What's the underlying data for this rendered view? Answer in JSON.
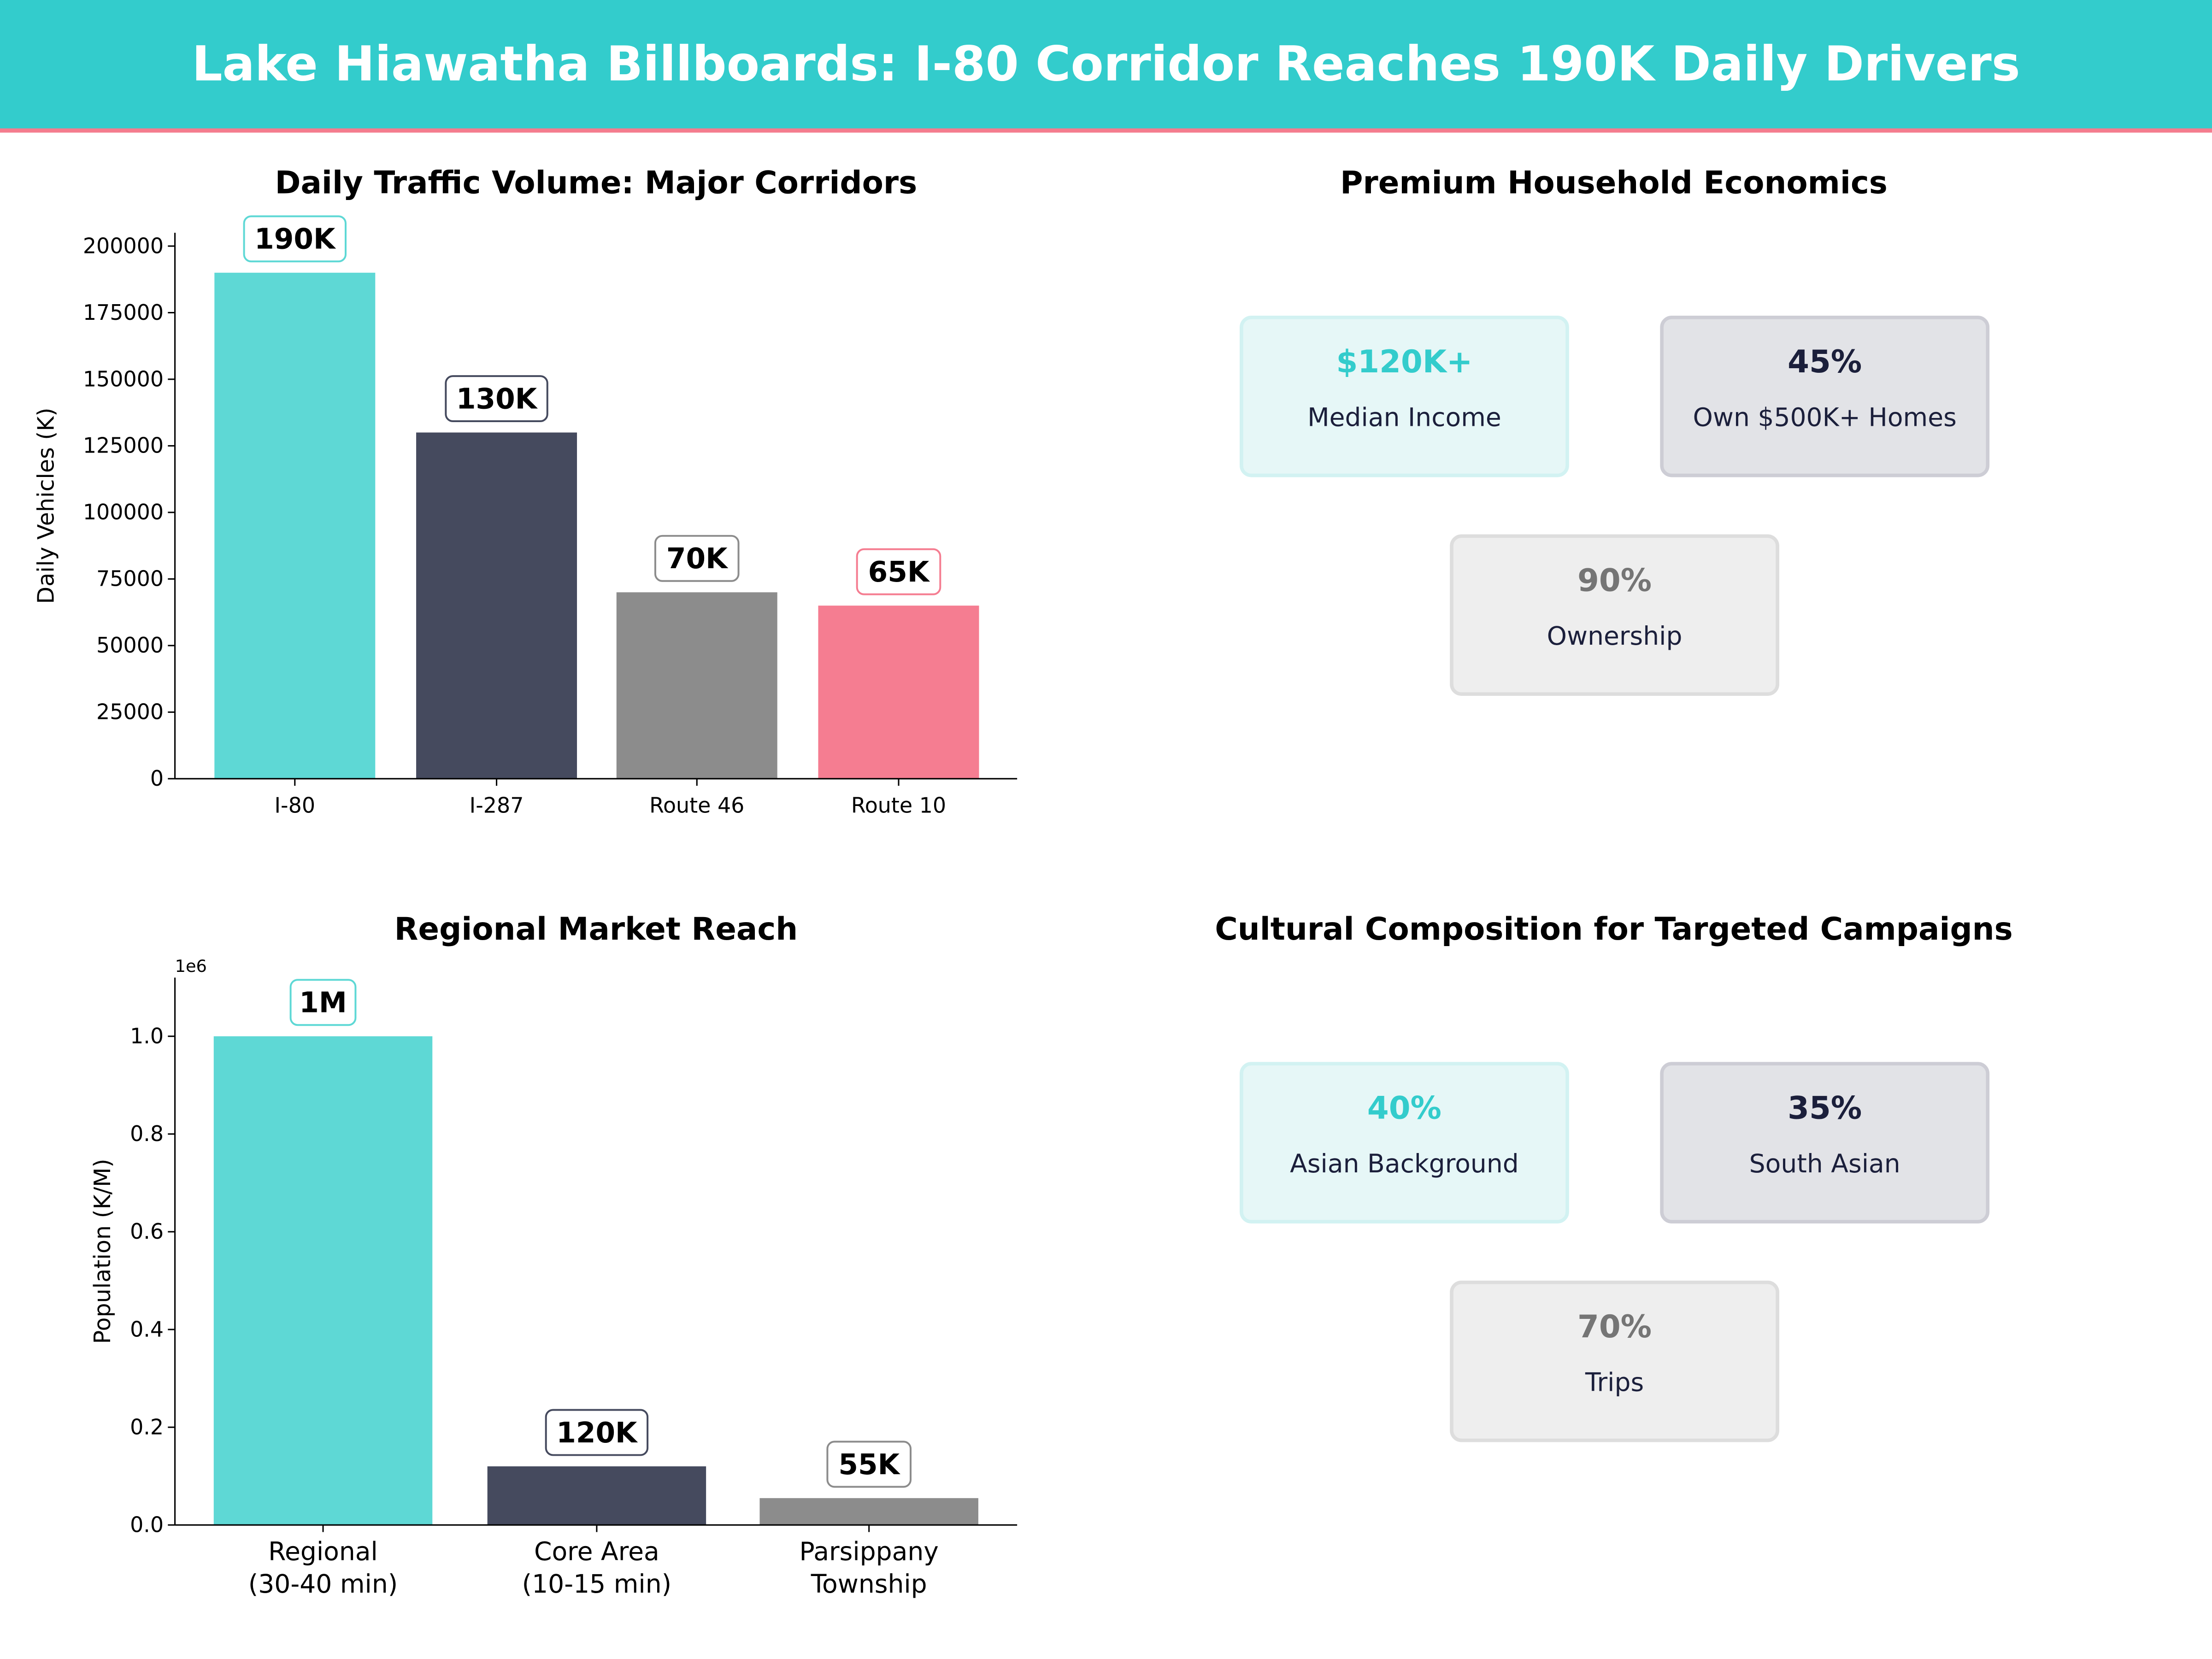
{
  "header": {
    "title": "Lake Hiawatha Billboards: I-80 Corridor Reaches 190K Daily Drivers",
    "bg_color": "#33CCCC",
    "accent_line": "#F47C8E"
  },
  "chart_data": [
    {
      "type": "bar",
      "title": "Daily Traffic Volume: Major Corridors",
      "xlabel": "",
      "ylabel": "Daily Vehicles (K)",
      "categories": [
        "I-80",
        "I-287",
        "Route 46",
        "Route 10"
      ],
      "values": [
        190000,
        130000,
        70000,
        65000
      ],
      "data_labels": [
        "190K",
        "130K",
        "70K",
        "65K"
      ],
      "colors": [
        "#5ED8D5",
        "#454A5E",
        "#8C8C8C",
        "#F57D91"
      ],
      "ylim": [
        0,
        205000
      ],
      "yticks": [
        0,
        25000,
        50000,
        75000,
        100000,
        125000,
        150000,
        175000,
        200000
      ],
      "ytick_labels": [
        "0",
        "25000",
        "50000",
        "75000",
        "100000",
        "125000",
        "150000",
        "175000",
        "200000"
      ],
      "grid": false
    },
    {
      "type": "bar",
      "title": "Regional Market Reach",
      "xlabel": "",
      "ylabel": "Population (K/M)",
      "offset_label": "1e6",
      "categories": [
        [
          "Regional",
          "(30-40 min)"
        ],
        [
          "Core Area",
          "(10-15 min)"
        ],
        [
          "Parsippany",
          "Township"
        ]
      ],
      "values": [
        1000000,
        120000,
        55000
      ],
      "data_labels": [
        "1M",
        "120K",
        "55K"
      ],
      "colors": [
        "#5ED8D5",
        "#454A5E",
        "#8C8C8C"
      ],
      "ylim": [
        0,
        1120000
      ],
      "yticks": [
        0,
        200000,
        400000,
        600000,
        800000,
        1000000
      ],
      "ytick_labels": [
        "0.0",
        "0.2",
        "0.4",
        "0.6",
        "0.8",
        "1.0"
      ],
      "grid": false
    }
  ],
  "panels": [
    {
      "title": "Premium Household Economics",
      "cards": [
        {
          "value": "$120K+",
          "label": "Median Income",
          "value_color": "#33CCCC",
          "bg": "#E6F7F7",
          "border": "#D2F2F2"
        },
        {
          "value": "45%",
          "label": "Own $500K+ Homes",
          "value_color": "#1B1F3B",
          "bg": "#E2E3E7",
          "border": "#CDCDD5"
        },
        {
          "value": "90%",
          "label": "Ownership",
          "value_color": "#757575",
          "bg": "#EEEEEE",
          "border": "#DDDDDD"
        }
      ]
    },
    {
      "title": "Cultural Composition for Targeted Campaigns",
      "cards": [
        {
          "value": "40%",
          "label": "Asian Background",
          "value_color": "#33CCCC",
          "bg": "#E6F7F7",
          "border": "#D2F2F2"
        },
        {
          "value": "35%",
          "label": "South Asian",
          "value_color": "#1B1F3B",
          "bg": "#E2E3E7",
          "border": "#CDCDD5"
        },
        {
          "value": "70%",
          "label": "Trips",
          "value_color": "#757575",
          "bg": "#EEEEEE",
          "border": "#DDDDDD"
        }
      ]
    }
  ]
}
